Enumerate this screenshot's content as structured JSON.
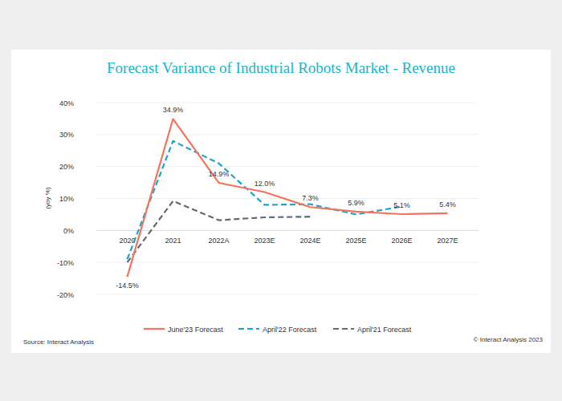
{
  "chart_data": {
    "type": "line",
    "title": "Forecast Variance of Industrial Robots Market - Revenue",
    "y_label": "(yoy %)",
    "source": "Source: Interact Analysis",
    "credit": "© Interact Analysis 2023",
    "categories": [
      "2020",
      "2021",
      "2022A",
      "2023E",
      "2024E",
      "2025E",
      "2026E",
      "2027E"
    ],
    "series": [
      {
        "name": "June'23 Forecast",
        "color": "#f4725e",
        "line_style": "solid",
        "values": [
          -14.5,
          34.9,
          14.9,
          12.0,
          7.3,
          5.9,
          5.1,
          5.4
        ],
        "value_labels": [
          "-14.5%",
          "34.9%",
          "14.9%",
          "12.0%",
          "7.3%",
          "5.9%",
          "5.1%",
          "5.4%"
        ]
      },
      {
        "name": "April'22 Forecast",
        "color": "#1aa7c5",
        "line_style": "dashed",
        "values": [
          -9,
          28,
          21,
          8,
          8.2,
          5,
          7.5,
          null
        ]
      },
      {
        "name": "April'21 Forecast",
        "color": "#5f6b73",
        "line_style": "dashed",
        "values": [
          -10,
          9.2,
          3.2,
          4.1,
          4.3,
          null,
          null,
          null
        ]
      }
    ],
    "ylim": [
      -20,
      40
    ],
    "yticks": [
      {
        "value": -20,
        "label": "-20%"
      },
      {
        "value": -10,
        "label": "-10%"
      },
      {
        "value": 0,
        "label": "0%"
      },
      {
        "value": 10,
        "label": "10%"
      },
      {
        "value": 20,
        "label": "20%"
      },
      {
        "value": 30,
        "label": "30%"
      },
      {
        "value": 40,
        "label": "40%"
      }
    ],
    "grid": true,
    "data_labels": true,
    "legend": "bottom"
  }
}
